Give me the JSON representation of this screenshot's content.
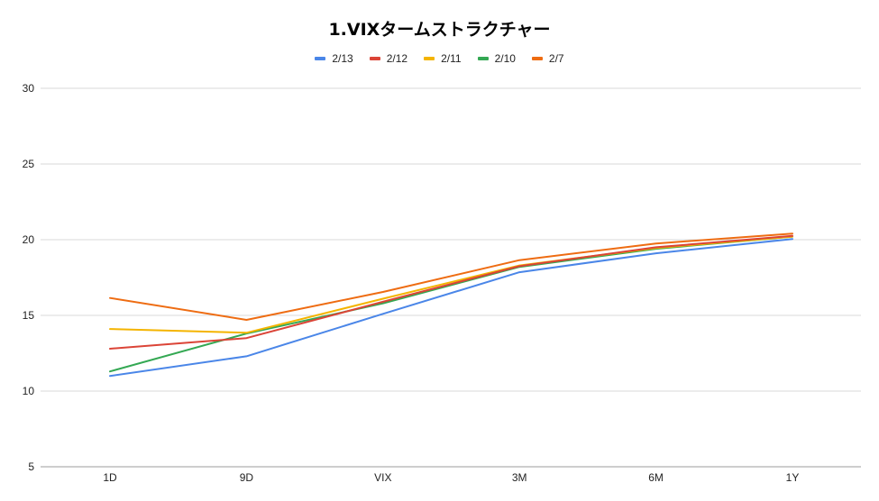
{
  "chart_data": {
    "type": "line",
    "title": "1.VIXタームストラクチャー",
    "categories": [
      "1D",
      "9D",
      "VIX",
      "3M",
      "6M",
      "1Y"
    ],
    "ylim": [
      5,
      30
    ],
    "yticks": [
      5,
      10,
      15,
      20,
      25,
      30
    ],
    "grid": true,
    "legend_position": "top",
    "series": [
      {
        "name": "2/13",
        "color": "#4a86e8",
        "values": [
          11.0,
          12.3,
          15.1,
          17.85,
          19.1,
          20.05
        ]
      },
      {
        "name": "2/12",
        "color": "#db4437",
        "values": [
          12.8,
          13.5,
          15.9,
          18.25,
          19.5,
          20.25
        ]
      },
      {
        "name": "2/11",
        "color": "#f4b400",
        "values": [
          14.1,
          13.85,
          16.1,
          18.3,
          19.45,
          20.2
        ]
      },
      {
        "name": "2/10",
        "color": "#34a853",
        "values": [
          11.3,
          13.8,
          15.8,
          18.2,
          19.4,
          20.2
        ]
      },
      {
        "name": "2/7",
        "color": "#ee6c12",
        "values": [
          16.15,
          14.7,
          16.55,
          18.65,
          19.75,
          20.4
        ]
      }
    ]
  }
}
